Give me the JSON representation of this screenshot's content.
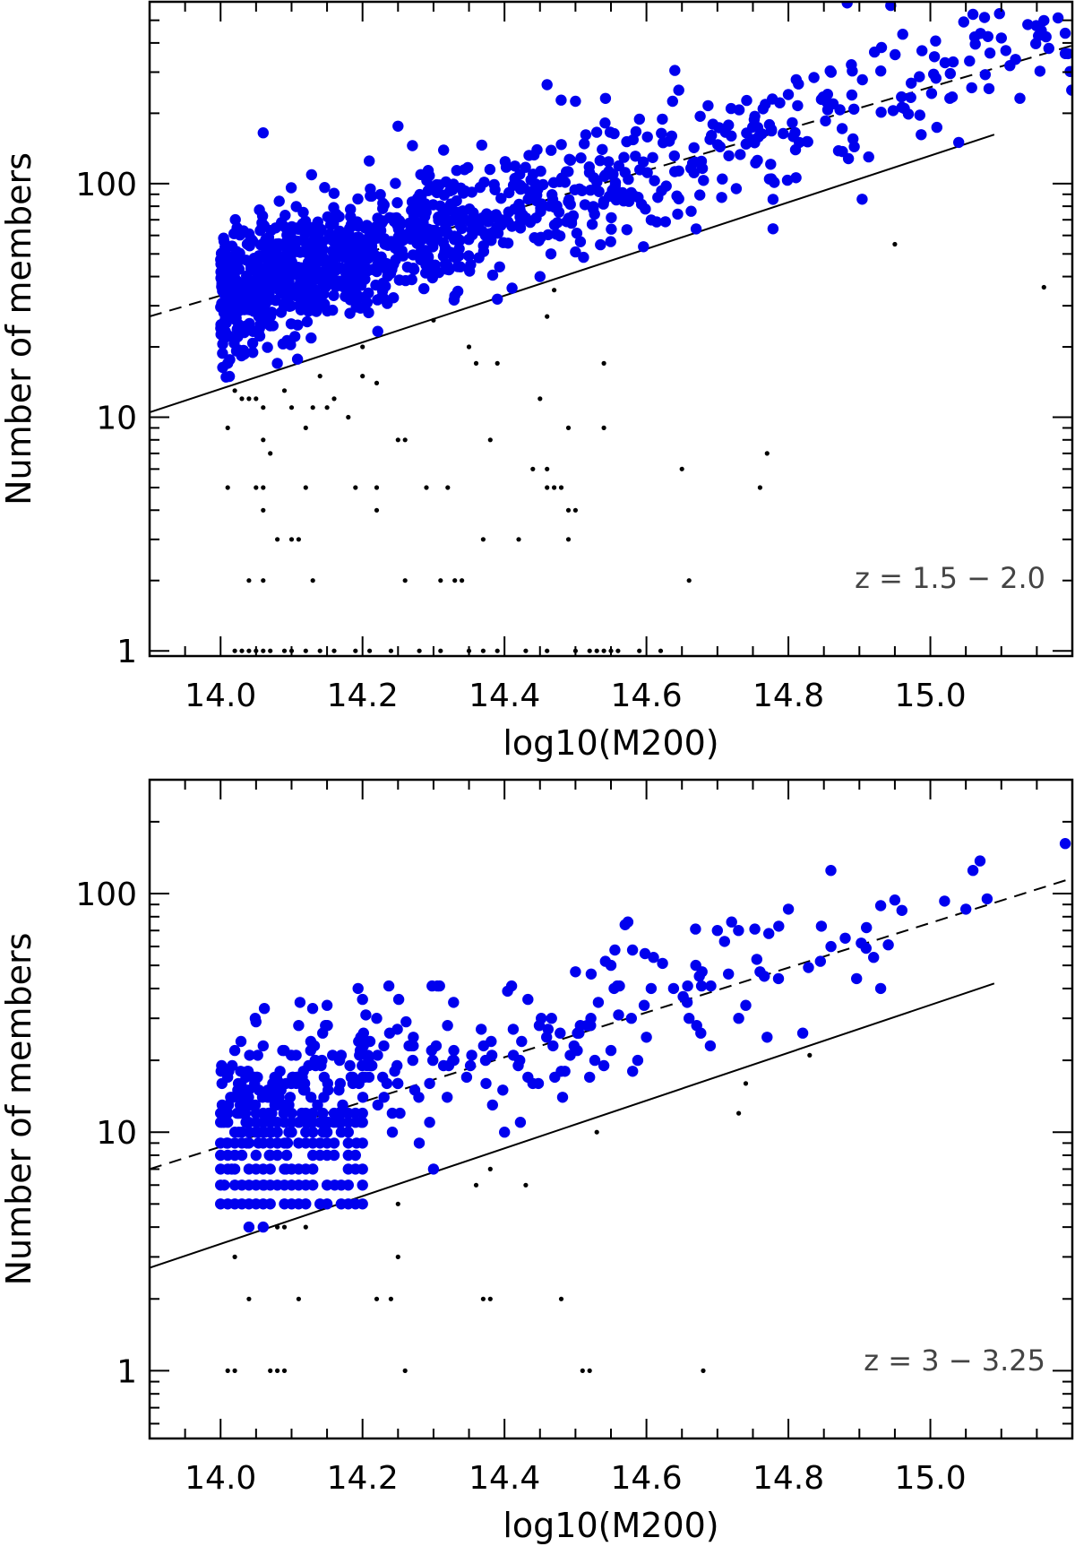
{
  "colors": {
    "members": "#0000ee",
    "outliers": "#000000",
    "lines": "#000000"
  },
  "chart_data": [
    {
      "type": "scatter",
      "xlabel": "log10(M200)",
      "ylabel": "Number of members",
      "annotation": "z = 1.5 − 2.0",
      "xlim": [
        13.9,
        15.2
      ],
      "ylim": [
        0.95,
        600
      ],
      "yscale": "log",
      "xticks": [
        "14.0",
        "14.2",
        "14.4",
        "14.6",
        "14.8",
        "15.0"
      ],
      "yticks": [
        "1",
        "10",
        "100"
      ],
      "lines": [
        {
          "style": "dashed",
          "x": [
            13.9,
            15.2
          ],
          "y": [
            27,
            390
          ]
        },
        {
          "style": "solid",
          "x": [
            13.9,
            15.09
          ],
          "y": [
            10.5,
            162
          ]
        }
      ],
      "series": [
        {
          "marker": "blue-dot",
          "seed": 11,
          "cloud": {
            "n": 1150,
            "xmin": 14.0,
            "xmax": 15.2,
            "xdecay": 0.33,
            "line_x": [
              14.0,
              15.2
            ],
            "line_y": [
              34,
              390
            ],
            "scatter_dex": 0.13
          },
          "points": [
            [
              14.06,
              165
            ],
            [
              14.25,
              176
            ],
            [
              14.46,
              265
            ],
            [
              14.5,
              225
            ],
            [
              14.64,
              305
            ],
            [
              15.06,
              530
            ],
            [
              15.1,
              420
            ],
            [
              15.19,
              440
            ],
            [
              15.19,
              360
            ],
            [
              15.12,
              340
            ],
            [
              15.04,
              150
            ],
            [
              14.67,
              64
            ],
            [
              14.5,
              51
            ],
            [
              14.45,
              40
            ],
            [
              14.39,
              32
            ],
            [
              14.08,
              17
            ],
            [
              14.01,
              17
            ]
          ]
        },
        {
          "marker": "black-dot",
          "points": [
            [
              14.02,
              1
            ],
            [
              14.03,
              1
            ],
            [
              14.04,
              1
            ],
            [
              14.05,
              1
            ],
            [
              14.06,
              1
            ],
            [
              14.07,
              1
            ],
            [
              14.09,
              1
            ],
            [
              14.1,
              1
            ],
            [
              14.12,
              1
            ],
            [
              14.14,
              1
            ],
            [
              14.16,
              1
            ],
            [
              14.19,
              1
            ],
            [
              14.21,
              1
            ],
            [
              14.24,
              1
            ],
            [
              14.28,
              1
            ],
            [
              14.31,
              1
            ],
            [
              14.35,
              1
            ],
            [
              14.37,
              1
            ],
            [
              14.39,
              1
            ],
            [
              14.43,
              1
            ],
            [
              14.46,
              1
            ],
            [
              14.5,
              1
            ],
            [
              14.52,
              1
            ],
            [
              14.53,
              1
            ],
            [
              14.54,
              1
            ],
            [
              14.55,
              1
            ],
            [
              14.56,
              1
            ],
            [
              14.59,
              1
            ],
            [
              14.62,
              1
            ],
            [
              14.04,
              2
            ],
            [
              14.06,
              2
            ],
            [
              14.13,
              2
            ],
            [
              14.26,
              2
            ],
            [
              14.31,
              2
            ],
            [
              14.33,
              2
            ],
            [
              14.34,
              2
            ],
            [
              14.66,
              2
            ],
            [
              14.08,
              3
            ],
            [
              14.1,
              3
            ],
            [
              14.11,
              3
            ],
            [
              14.37,
              3
            ],
            [
              14.42,
              3
            ],
            [
              14.49,
              3
            ],
            [
              14.06,
              4
            ],
            [
              14.22,
              4
            ],
            [
              14.49,
              4
            ],
            [
              14.5,
              4
            ],
            [
              14.01,
              5
            ],
            [
              14.05,
              5
            ],
            [
              14.06,
              5
            ],
            [
              14.12,
              5
            ],
            [
              14.19,
              5
            ],
            [
              14.22,
              5
            ],
            [
              14.29,
              5
            ],
            [
              14.32,
              5
            ],
            [
              14.46,
              5
            ],
            [
              14.47,
              5
            ],
            [
              14.48,
              5
            ],
            [
              14.76,
              5
            ],
            [
              14.46,
              6
            ],
            [
              14.44,
              6
            ],
            [
              14.65,
              6
            ],
            [
              14.07,
              7
            ],
            [
              14.77,
              7
            ],
            [
              14.06,
              8
            ],
            [
              14.25,
              8
            ],
            [
              14.26,
              8
            ],
            [
              14.38,
              8
            ],
            [
              14.01,
              9
            ],
            [
              14.12,
              9
            ],
            [
              14.49,
              9
            ],
            [
              14.54,
              9
            ],
            [
              14.02,
              13
            ],
            [
              14.03,
              12
            ],
            [
              14.04,
              12
            ],
            [
              14.05,
              12
            ],
            [
              14.06,
              11
            ],
            [
              14.09,
              13
            ],
            [
              14.1,
              11
            ],
            [
              14.13,
              11
            ],
            [
              14.15,
              11
            ],
            [
              14.16,
              12
            ],
            [
              14.18,
              10
            ],
            [
              14.14,
              15
            ],
            [
              14.2,
              15
            ],
            [
              14.22,
              14
            ],
            [
              14.2,
              20
            ],
            [
              14.3,
              26
            ],
            [
              14.35,
              20
            ],
            [
              14.36,
              17
            ],
            [
              14.39,
              17
            ],
            [
              14.45,
              12
            ],
            [
              14.46,
              27
            ],
            [
              14.47,
              35
            ],
            [
              14.54,
              17
            ],
            [
              14.95,
              55
            ],
            [
              15.16,
              36
            ]
          ]
        }
      ]
    },
    {
      "type": "scatter",
      "xlabel": "log10(M200)",
      "ylabel": "Number of members",
      "annotation": "z = 3 − 3.25",
      "xlim": [
        13.9,
        15.2
      ],
      "ylim": [
        0.52,
        300
      ],
      "yscale": "log",
      "xticks": [
        "14.0",
        "14.2",
        "14.4",
        "14.6",
        "14.8",
        "15.0"
      ],
      "yticks": [
        "1",
        "10",
        "100"
      ],
      "lines": [
        {
          "style": "dashed",
          "x": [
            13.9,
            15.2
          ],
          "y": [
            7,
            116
          ]
        },
        {
          "style": "solid",
          "x": [
            13.9,
            15.09
          ],
          "y": [
            2.7,
            42
          ]
        }
      ],
      "series": [
        {
          "marker": "blue-dot",
          "seed": 23,
          "grid": {
            "xmin": 14.0,
            "xmax": 14.2,
            "step": 0.01,
            "ymin": 5,
            "ymax": 12,
            "density": 0.72
          },
          "cloud": {
            "n": 300,
            "xmin": 14.0,
            "xmax": 14.95,
            "xdecay": 0.3,
            "line_x": [
              14.0,
              15.2
            ],
            "line_y": [
              12,
              116
            ],
            "scatter_dex": 0.15,
            "integer": true
          },
          "points": [
            [
              14.04,
              4
            ],
            [
              14.06,
              4
            ],
            [
              14.01,
              17
            ],
            [
              14.02,
              22
            ],
            [
              14.05,
              29
            ],
            [
              14.11,
              28
            ],
            [
              14.2,
              36
            ],
            [
              14.22,
              30
            ],
            [
              14.15,
              34
            ],
            [
              14.41,
              41
            ],
            [
              14.5,
              47
            ],
            [
              14.55,
              50
            ],
            [
              14.57,
              74
            ],
            [
              14.61,
              54
            ],
            [
              14.7,
              70
            ],
            [
              14.72,
              76
            ],
            [
              14.76,
              47
            ],
            [
              14.8,
              86
            ],
            [
              14.86,
              60
            ],
            [
              14.91,
              72
            ],
            [
              14.93,
              89
            ],
            [
              14.95,
              94
            ],
            [
              14.96,
              85
            ],
            [
              15.02,
              93
            ],
            [
              15.05,
              86
            ],
            [
              15.07,
              137
            ],
            [
              15.06,
              125
            ],
            [
              15.08,
              95
            ],
            [
              15.19,
              162
            ],
            [
              14.93,
              40
            ],
            [
              14.92,
              54
            ],
            [
              14.88,
              65
            ],
            [
              14.71,
              63
            ],
            [
              14.74,
              34
            ],
            [
              14.73,
              30
            ],
            [
              14.77,
              25
            ],
            [
              14.69,
              23
            ],
            [
              14.66,
              30
            ],
            [
              14.6,
              25
            ],
            [
              14.55,
              22
            ],
            [
              14.54,
              19
            ],
            [
              14.52,
              17
            ],
            [
              14.48,
              18
            ],
            [
              14.44,
              16
            ],
            [
              14.4,
              10
            ],
            [
              14.3,
              7
            ]
          ]
        },
        {
          "marker": "black-dot",
          "points": [
            [
              14.01,
              1
            ],
            [
              14.02,
              1
            ],
            [
              14.07,
              1
            ],
            [
              14.08,
              1
            ],
            [
              14.09,
              1
            ],
            [
              14.26,
              1
            ],
            [
              14.51,
              1
            ],
            [
              14.52,
              1
            ],
            [
              14.68,
              1
            ],
            [
              14.04,
              2
            ],
            [
              14.11,
              2
            ],
            [
              14.22,
              2
            ],
            [
              14.24,
              2
            ],
            [
              14.37,
              2
            ],
            [
              14.38,
              2
            ],
            [
              14.48,
              2
            ],
            [
              14.02,
              3
            ],
            [
              14.25,
              3
            ],
            [
              14.08,
              4
            ],
            [
              14.09,
              4
            ],
            [
              14.12,
              4
            ],
            [
              14.25,
              5
            ],
            [
              14.36,
              6
            ],
            [
              14.43,
              6
            ],
            [
              14.38,
              7
            ],
            [
              14.53,
              10
            ],
            [
              14.73,
              12
            ],
            [
              14.74,
              16
            ],
            [
              14.83,
              21
            ]
          ]
        }
      ]
    }
  ]
}
